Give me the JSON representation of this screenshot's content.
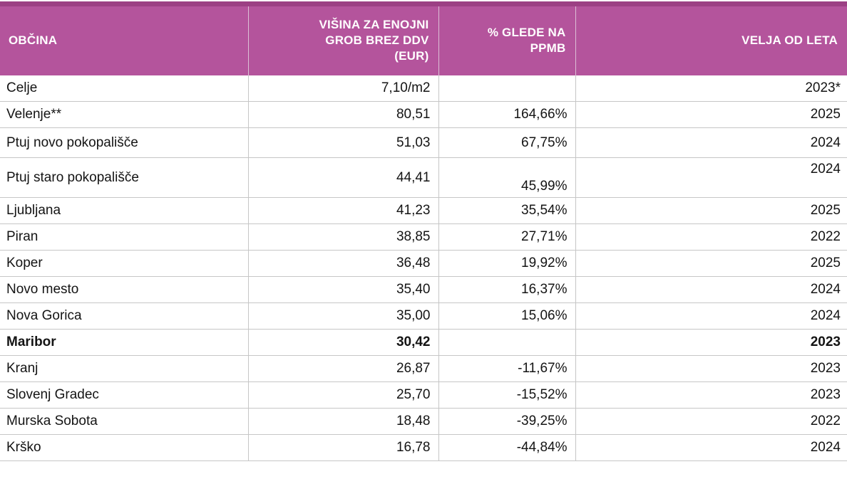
{
  "table": {
    "columns": [
      {
        "key": "obcina",
        "label": "OBČINA"
      },
      {
        "key": "visina",
        "label": "VIŠINA ZA ENOJNI\nGROB BREZ DDV\n(EUR)"
      },
      {
        "key": "pct",
        "label": "% GLEDE NA\nPPMB"
      },
      {
        "key": "velja",
        "label": "VELJA OD LETA"
      }
    ],
    "rows": [
      {
        "obcina": "Celje",
        "visina": "7,10/m2",
        "pct": "",
        "velja": "2023*"
      },
      {
        "obcina": "Velenje**",
        "visina": "80,51",
        "pct": "164,66%",
        "velja": "2025"
      },
      {
        "obcina": "Ptuj novo pokopališče",
        "visina": "51,03",
        "pct": "67,75%",
        "velja": "2024"
      },
      {
        "obcina": "Ptuj staro pokopališče",
        "visina": "44,41",
        "pct": "45,99%",
        "velja": "2024"
      },
      {
        "obcina": "Ljubljana",
        "visina": "41,23",
        "pct": "35,54%",
        "velja": "2025"
      },
      {
        "obcina": "Piran",
        "visina": "38,85",
        "pct": "27,71%",
        "velja": "2022"
      },
      {
        "obcina": "Koper",
        "visina": "36,48",
        "pct": "19,92%",
        "velja": "2025"
      },
      {
        "obcina": "Novo mesto",
        "visina": "35,40",
        "pct": "16,37%",
        "velja": "2024"
      },
      {
        "obcina": "Nova Gorica",
        "visina": "35,00",
        "pct": "15,06%",
        "velja": "2024"
      },
      {
        "obcina": "Maribor",
        "visina": "30,42",
        "pct": "",
        "velja": "2023",
        "bold": true
      },
      {
        "obcina": "Kranj",
        "visina": "26,87",
        "pct": "-11,67%",
        "velja": "2023"
      },
      {
        "obcina": "Slovenj Gradec",
        "visina": "25,70",
        "pct": "-15,52%",
        "velja": "2023"
      },
      {
        "obcina": "Murska Sobota",
        "visina": "18,48",
        "pct": "-39,25%",
        "velja": "2022"
      },
      {
        "obcina": "Krško",
        "visina": "16,78",
        "pct": "-44,84%",
        "velja": "2024"
      }
    ]
  },
  "colors": {
    "header_bg": "#b4549c",
    "header_top_border": "#9c4084",
    "header_text": "#ffffff",
    "gridline": "#c6c6c6",
    "body_text": "#141414"
  }
}
